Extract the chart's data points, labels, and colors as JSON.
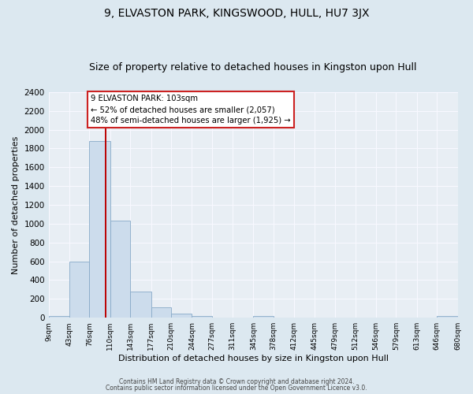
{
  "title": "9, ELVASTON PARK, KINGSWOOD, HULL, HU7 3JX",
  "subtitle": "Size of property relative to detached houses in Kingston upon Hull",
  "xlabel": "Distribution of detached houses by size in Kingston upon Hull",
  "ylabel": "Number of detached properties",
  "bin_edges": [
    9,
    43,
    76,
    110,
    143,
    177,
    210,
    244,
    277,
    311,
    345,
    378,
    412,
    445,
    479,
    512,
    546,
    579,
    613,
    646,
    680
  ],
  "bin_counts": [
    20,
    600,
    1880,
    1030,
    280,
    110,
    45,
    20,
    0,
    0,
    20,
    0,
    0,
    0,
    0,
    0,
    0,
    0,
    0,
    20
  ],
  "bar_color": "#ccdcec",
  "bar_edge_color": "#88aac8",
  "property_size": 103,
  "vline_color": "#bb0000",
  "annotation_line1": "9 ELVASTON PARK: 103sqm",
  "annotation_line2": "← 52% of detached houses are smaller (2,057)",
  "annotation_line3": "48% of semi-detached houses are larger (1,925) →",
  "annotation_box_color": "#ffffff",
  "annotation_box_edge": "#cc2222",
  "ylim": [
    0,
    2400
  ],
  "yticks": [
    0,
    200,
    400,
    600,
    800,
    1000,
    1200,
    1400,
    1600,
    1800,
    2000,
    2200,
    2400
  ],
  "footer1": "Contains HM Land Registry data © Crown copyright and database right 2024.",
  "footer2": "Contains public sector information licensed under the Open Government Licence v3.0.",
  "fig_bg": "#dce8f0",
  "plot_bg": "#e8eef4",
  "grid_color": "#f8f8ff",
  "title_fontsize": 10,
  "subtitle_fontsize": 9
}
